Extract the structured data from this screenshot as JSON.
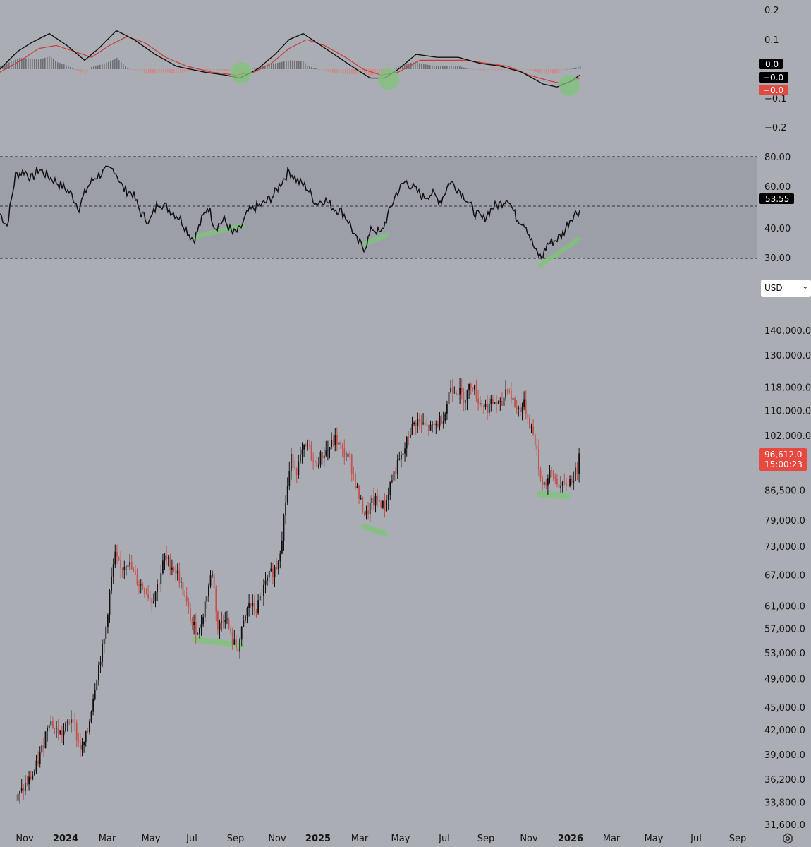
{
  "currency_selector": {
    "value": "USD",
    "chevron_icon": "chevron-down-icon"
  },
  "settings_icon": "gear-icon",
  "colors": {
    "background": "#abadb5",
    "up_candle": "#111111",
    "down_candle": "#c8504b",
    "macd_line": "#111111",
    "signal_line": "#cc3b35",
    "hist_positive": "#6e6e74",
    "hist_negative": "#cf8a88",
    "highlight": "#7fc47a",
    "rsi_band": "#9d9fa8",
    "last_price_tag": "#e5493f"
  },
  "chart_data": [
    {
      "type": "line",
      "indicator": "MACD",
      "yticks": [
        "0.2",
        "0.1",
        "−0.1",
        "−0.2"
      ],
      "ylim": [
        -0.24,
        0.24
      ],
      "value_tags": [
        "0.0",
        "−0.0",
        "−0.0"
      ],
      "macd": [
        [
          0,
          0.0
        ],
        [
          25,
          0.06
        ],
        [
          45,
          0.09
        ],
        [
          70,
          0.12
        ],
        [
          95,
          0.08
        ],
        [
          120,
          0.03
        ],
        [
          140,
          0.07
        ],
        [
          165,
          0.13
        ],
        [
          190,
          0.1
        ],
        [
          220,
          0.05
        ],
        [
          250,
          0.01
        ],
        [
          290,
          -0.01
        ],
        [
          320,
          -0.02
        ],
        [
          340,
          -0.03
        ],
        [
          365,
          0.0
        ],
        [
          390,
          0.05
        ],
        [
          410,
          0.1
        ],
        [
          430,
          0.12
        ],
        [
          455,
          0.08
        ],
        [
          480,
          0.04
        ],
        [
          505,
          0.0
        ],
        [
          525,
          -0.03
        ],
        [
          545,
          -0.03
        ],
        [
          565,
          0.0
        ],
        [
          590,
          0.05
        ],
        [
          620,
          0.04
        ],
        [
          650,
          0.04
        ],
        [
          680,
          0.02
        ],
        [
          710,
          0.01
        ],
        [
          740,
          -0.01
        ],
        [
          770,
          -0.05
        ],
        [
          790,
          -0.06
        ],
        [
          810,
          -0.04
        ],
        [
          822,
          -0.02
        ]
      ],
      "signal": [
        [
          0,
          -0.01
        ],
        [
          30,
          0.03
        ],
        [
          55,
          0.07
        ],
        [
          80,
          0.08
        ],
        [
          105,
          0.06
        ],
        [
          130,
          0.04
        ],
        [
          155,
          0.08
        ],
        [
          180,
          0.11
        ],
        [
          205,
          0.09
        ],
        [
          235,
          0.04
        ],
        [
          265,
          0.01
        ],
        [
          300,
          -0.01
        ],
        [
          335,
          -0.02
        ],
        [
          360,
          -0.01
        ],
        [
          385,
          0.02
        ],
        [
          410,
          0.07
        ],
        [
          435,
          0.1
        ],
        [
          460,
          0.08
        ],
        [
          490,
          0.04
        ],
        [
          515,
          0.0
        ],
        [
          540,
          -0.02
        ],
        [
          565,
          -0.01
        ],
        [
          595,
          0.03
        ],
        [
          625,
          0.03
        ],
        [
          660,
          0.03
        ],
        [
          690,
          0.02
        ],
        [
          720,
          0.01
        ],
        [
          750,
          -0.02
        ],
        [
          780,
          -0.04
        ],
        [
          800,
          -0.05
        ],
        [
          822,
          -0.03
        ]
      ]
    },
    {
      "type": "line",
      "indicator": "RSI",
      "yticks": [
        "80.00",
        "60.00",
        "40.00",
        "30.00"
      ],
      "ylim": [
        25,
        85
      ],
      "band": [
        30,
        80
      ],
      "midline": 53.55,
      "last_value": "53.55",
      "rsi": [
        [
          0,
          52
        ],
        [
          10,
          46
        ],
        [
          22,
          71
        ],
        [
          35,
          73
        ],
        [
          45,
          69
        ],
        [
          55,
          74
        ],
        [
          66,
          71
        ],
        [
          78,
          68
        ],
        [
          90,
          65
        ],
        [
          100,
          62
        ],
        [
          112,
          55
        ],
        [
          124,
          65
        ],
        [
          135,
          70
        ],
        [
          150,
          73
        ],
        [
          162,
          74
        ],
        [
          175,
          64
        ],
        [
          188,
          62
        ],
        [
          200,
          52
        ],
        [
          212,
          48
        ],
        [
          225,
          58
        ],
        [
          240,
          54
        ],
        [
          255,
          50
        ],
        [
          268,
          42
        ],
        [
          275,
          39
        ],
        [
          285,
          48
        ],
        [
          295,
          56
        ],
        [
          305,
          45
        ],
        [
          318,
          49
        ],
        [
          330,
          42
        ],
        [
          340,
          44
        ],
        [
          352,
          53
        ],
        [
          362,
          55
        ],
        [
          375,
          57
        ],
        [
          388,
          61
        ],
        [
          398,
          67
        ],
        [
          410,
          73
        ],
        [
          422,
          68
        ],
        [
          435,
          65
        ],
        [
          448,
          57
        ],
        [
          460,
          59
        ],
        [
          472,
          55
        ],
        [
          485,
          53
        ],
        [
          495,
          48
        ],
        [
          505,
          39
        ],
        [
          517,
          35
        ],
        [
          528,
          45
        ],
        [
          540,
          42
        ],
        [
          552,
          53
        ],
        [
          562,
          62
        ],
        [
          575,
          68
        ],
        [
          585,
          65
        ],
        [
          600,
          60
        ],
        [
          612,
          62
        ],
        [
          625,
          58
        ],
        [
          638,
          68
        ],
        [
          650,
          64
        ],
        [
          660,
          60
        ],
        [
          672,
          53
        ],
        [
          685,
          49
        ],
        [
          698,
          55
        ],
        [
          710,
          57
        ],
        [
          720,
          60
        ],
        [
          732,
          50
        ],
        [
          745,
          47
        ],
        [
          752,
          40
        ],
        [
          760,
          33
        ],
        [
          768,
          30
        ],
        [
          776,
          37
        ],
        [
          788,
          39
        ],
        [
          798,
          42
        ],
        [
          808,
          49
        ],
        [
          815,
          52
        ],
        [
          822,
          53.55
        ]
      ]
    },
    {
      "type": "candlestick",
      "title": "",
      "yscale": "log",
      "yticks": [
        "140,000.0",
        "130,000.0",
        "118,000.0",
        "110,000.0",
        "102,000.0",
        "86,500.0",
        "79,000.0",
        "73,000.0",
        "67,000.0",
        "61,000.0",
        "57,000.0",
        "53,000.0",
        "49,000.0",
        "45,000.0",
        "42,000.0",
        "39,000.0",
        "36,200.0",
        "33,800.0",
        "31,600.0"
      ],
      "xticks": [
        {
          "label": "Nov",
          "bold": false
        },
        {
          "label": "2024",
          "bold": true
        },
        {
          "label": "Mar",
          "bold": false
        },
        {
          "label": "May",
          "bold": false
        },
        {
          "label": "Jul",
          "bold": false
        },
        {
          "label": "Sep",
          "bold": false
        },
        {
          "label": "Nov",
          "bold": false
        },
        {
          "label": "2025",
          "bold": true
        },
        {
          "label": "Mar",
          "bold": false
        },
        {
          "label": "May",
          "bold": false
        },
        {
          "label": "Jul",
          "bold": false
        },
        {
          "label": "Sep",
          "bold": false
        },
        {
          "label": "Nov",
          "bold": false
        },
        {
          "label": "2026",
          "bold": true
        },
        {
          "label": "Mar",
          "bold": false
        },
        {
          "label": "May",
          "bold": false
        },
        {
          "label": "Jul",
          "bold": false
        },
        {
          "label": "Sep",
          "bold": false
        }
      ],
      "last_price": "96,612.0",
      "countdown": "15:00:23",
      "close_path": [
        [
          22,
          34000
        ],
        [
          35,
          35500
        ],
        [
          48,
          37000
        ],
        [
          60,
          40000
        ],
        [
          68,
          43500
        ],
        [
          78,
          42000
        ],
        [
          88,
          41500
        ],
        [
          102,
          44000
        ],
        [
          108,
          41000
        ],
        [
          115,
          39500
        ],
        [
          124,
          42000
        ],
        [
          132,
          47000
        ],
        [
          140,
          51500
        ],
        [
          148,
          55500
        ],
        [
          155,
          64000
        ],
        [
          162,
          71000
        ],
        [
          170,
          68000
        ],
        [
          180,
          70000
        ],
        [
          192,
          66000
        ],
        [
          205,
          64000
        ],
        [
          215,
          62000
        ],
        [
          225,
          66000
        ],
        [
          232,
          70500
        ],
        [
          242,
          69000
        ],
        [
          252,
          67000
        ],
        [
          262,
          62000
        ],
        [
          272,
          57500
        ],
        [
          282,
          56500
        ],
        [
          292,
          63000
        ],
        [
          300,
          68000
        ],
        [
          308,
          57000
        ],
        [
          318,
          59500
        ],
        [
          328,
          55000
        ],
        [
          336,
          53500
        ],
        [
          345,
          58000
        ],
        [
          352,
          61500
        ],
        [
          362,
          60000
        ],
        [
          372,
          64000
        ],
        [
          382,
          67000
        ],
        [
          392,
          69000
        ],
        [
          398,
          74000
        ],
        [
          405,
          85000
        ],
        [
          412,
          95000
        ],
        [
          420,
          92000
        ],
        [
          428,
          97000
        ],
        [
          436,
          99000
        ],
        [
          445,
          93000
        ],
        [
          455,
          96000
        ],
        [
          465,
          98000
        ],
        [
          475,
          101000
        ],
        [
          485,
          97000
        ],
        [
          495,
          95000
        ],
        [
          502,
          89000
        ],
        [
          510,
          83500
        ],
        [
          518,
          80000
        ],
        [
          525,
          83000
        ],
        [
          535,
          84000
        ],
        [
          545,
          82000
        ],
        [
          552,
          88000
        ],
        [
          560,
          92000
        ],
        [
          570,
          96000
        ],
        [
          580,
          103000
        ],
        [
          590,
          107000
        ],
        [
          600,
          105000
        ],
        [
          610,
          104000
        ],
        [
          620,
          106000
        ],
        [
          630,
          109000
        ],
        [
          638,
          118500
        ],
        [
          648,
          117000
        ],
        [
          658,
          114000
        ],
        [
          668,
          120000
        ],
        [
          678,
          113000
        ],
        [
          690,
          111000
        ],
        [
          700,
          113000
        ],
        [
          710,
          111000
        ],
        [
          718,
          119000
        ],
        [
          725,
          114000
        ],
        [
          733,
          110000
        ],
        [
          742,
          112000
        ],
        [
          750,
          106000
        ],
        [
          758,
          100000
        ],
        [
          765,
          90000
        ],
        [
          772,
          88000
        ],
        [
          780,
          91000
        ],
        [
          788,
          89000
        ],
        [
          796,
          87000
        ],
        [
          804,
          88500
        ],
        [
          812,
          90000
        ],
        [
          818,
          92000
        ],
        [
          822,
          96612
        ]
      ]
    }
  ]
}
